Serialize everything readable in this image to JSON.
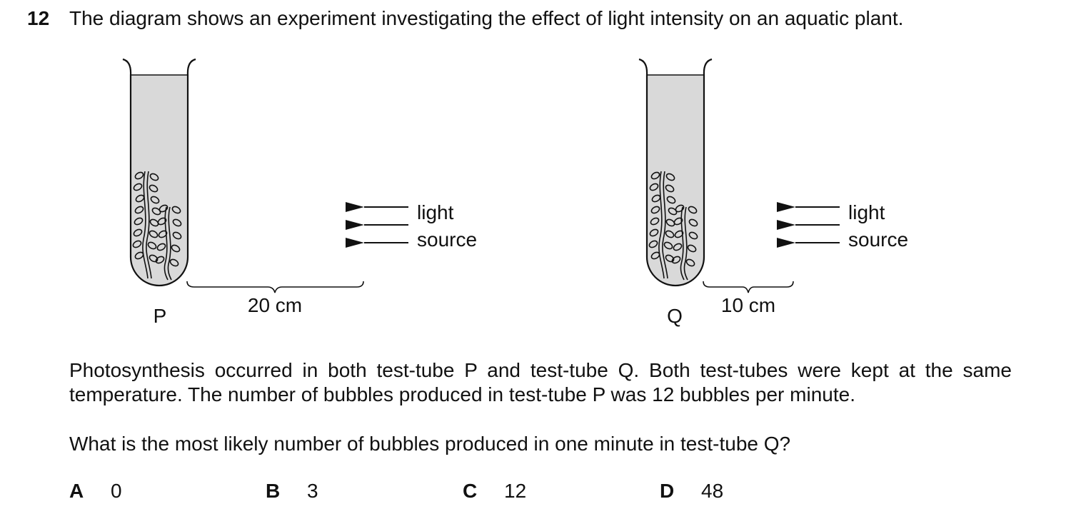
{
  "question": {
    "number": "12",
    "stem": "The diagram shows an experiment investigating the effect of light intensity on an aquatic plant."
  },
  "diagram": {
    "setups": [
      {
        "tube_label": "P",
        "distance_label": "20 cm",
        "light_label_line1": "light",
        "light_label_line2": "source"
      },
      {
        "tube_label": "Q",
        "distance_label": "10 cm",
        "light_label_line1": "light",
        "light_label_line2": "source"
      }
    ],
    "colors": {
      "water": "#d9d9d9",
      "line": "#111111"
    }
  },
  "paragraph": "Photosynthesis occurred in both test-tube P and test-tube Q. Both test-tubes were kept at the same temperature. The number of bubbles produced in test-tube P was 12 bubbles per minute.",
  "prompt": "What is the most likely number of bubbles produced in one minute in test-tube Q?",
  "options": [
    {
      "letter": "A",
      "value": "0"
    },
    {
      "letter": "B",
      "value": "3"
    },
    {
      "letter": "C",
      "value": "12"
    },
    {
      "letter": "D",
      "value": "48"
    }
  ]
}
